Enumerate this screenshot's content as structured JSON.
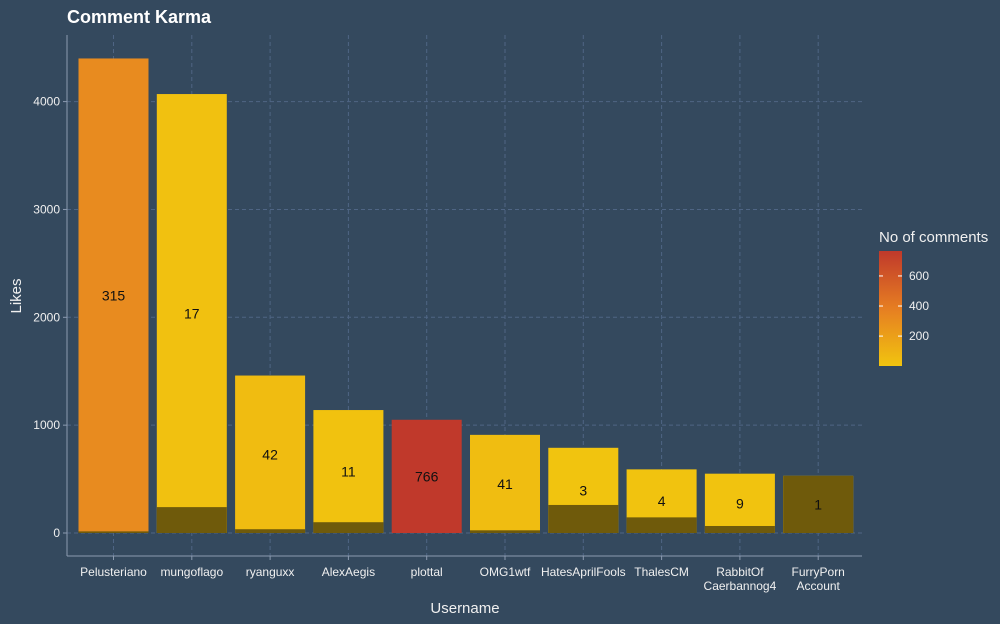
{
  "chart_data": {
    "type": "bar",
    "title": "Comment Karma",
    "xlabel": "Username",
    "ylabel": "Likes",
    "ylim": [
      0,
      4500
    ],
    "yticks": [
      0,
      1000,
      2000,
      3000,
      4000
    ],
    "grid": true,
    "categories": [
      "Pelusteriano",
      "mungoflago",
      "ryanguxx",
      "AlexAegis",
      "plottal",
      "OMG1wtf",
      "HatesAprilFools",
      "ThalesCM",
      "RabbitOf\nCaerbannog4",
      "FurryPorn\nAccount"
    ],
    "values": [
      4400,
      4070,
      1460,
      1140,
      1050,
      910,
      790,
      590,
      550,
      530
    ],
    "lower_segment": [
      15,
      240,
      35,
      100,
      0,
      25,
      260,
      145,
      65,
      530
    ],
    "comment_counts": [
      315,
      17,
      42,
      11,
      766,
      41,
      3,
      4,
      9,
      1
    ],
    "label_text": [
      "315",
      "17",
      "42",
      "11",
      "766",
      "41",
      "3",
      "4",
      "9",
      "1"
    ],
    "colors": {
      "background": "#34495e",
      "grid": "#4f6584",
      "axis": "#8c9bb0",
      "lower_segment": "#6f5a0b",
      "gradient_low": "#f1c40f",
      "gradient_mid": "#e67e22",
      "gradient_high": "#c0392b"
    },
    "legend": {
      "title": "No of comments",
      "placement": "right",
      "ticks": [
        200,
        400,
        600
      ],
      "tick_labels": [
        "200",
        "400",
        "600"
      ],
      "min": 1,
      "max": 766
    }
  }
}
